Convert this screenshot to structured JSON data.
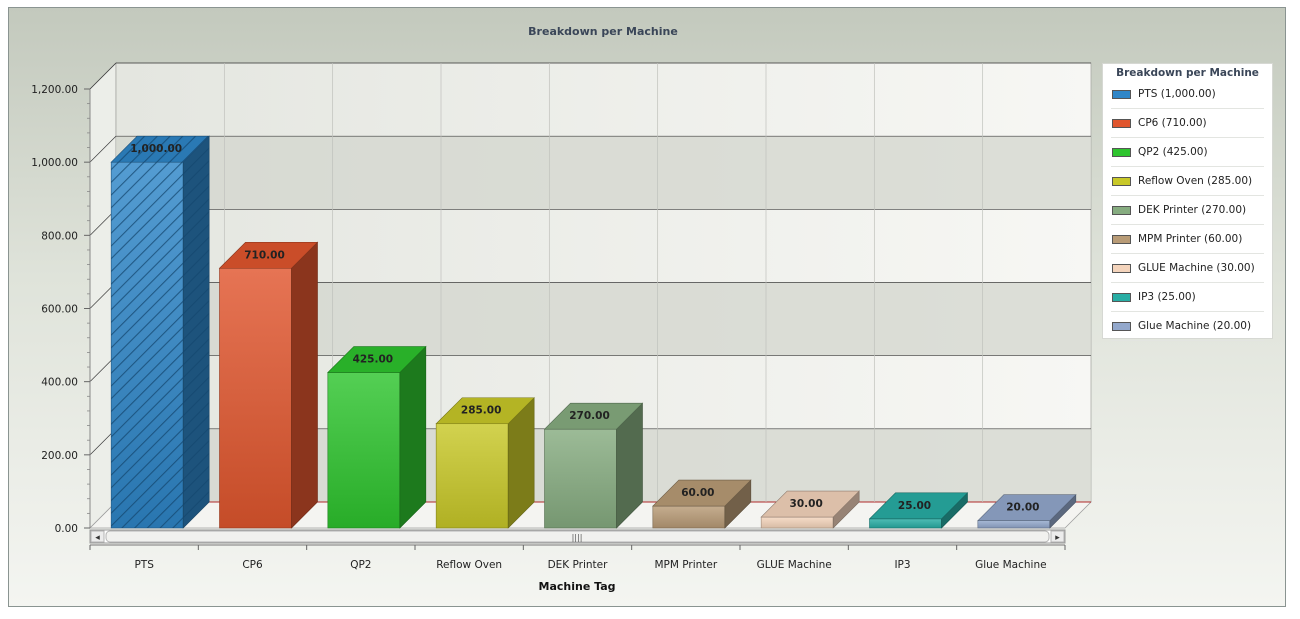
{
  "chart_data": {
    "type": "bar",
    "title": "Breakdown per Machine",
    "xlabel": "Machine Tag",
    "ylabel": "",
    "categories": [
      "PTS",
      "CP6",
      "QP2",
      "Reflow Oven",
      "DEK Printer",
      "MPM Printer",
      "GLUE Machine",
      "IP3",
      "Glue Machine"
    ],
    "values": [
      1000,
      710,
      425,
      285,
      270,
      60,
      30,
      25,
      20
    ],
    "value_labels": [
      "1,000.00",
      "710.00",
      "425.00",
      "285.00",
      "270.00",
      "60.00",
      "30.00",
      "25.00",
      "20.00"
    ],
    "ylim": [
      0,
      1200
    ],
    "yticks": [
      "0.00",
      "200.00",
      "400.00",
      "600.00",
      "800.00",
      "1,000.00",
      "1,200.00"
    ],
    "colors": [
      "#2f86c8",
      "#e0562e",
      "#2ec42e",
      "#c8c828",
      "#86ac80",
      "#b89b76",
      "#f4d4bc",
      "#28ada4",
      "#93a8cc"
    ],
    "grid": true,
    "legend_position": "right",
    "legend_title": "Breakdown per Machine",
    "legend_entries": [
      "PTS (1,000.00)",
      "CP6 (710.00)",
      "QP2 (425.00)",
      "Reflow Oven (285.00)",
      "DEK Printer (270.00)",
      "MPM Printer (60.00)",
      "GLUE Machine (30.00)",
      "IP3 (25.00)",
      "Glue Machine (20.00)"
    ]
  },
  "scrollbar": {
    "left_arrow": "◂",
    "right_arrow": "▸",
    "grip": "||||"
  }
}
